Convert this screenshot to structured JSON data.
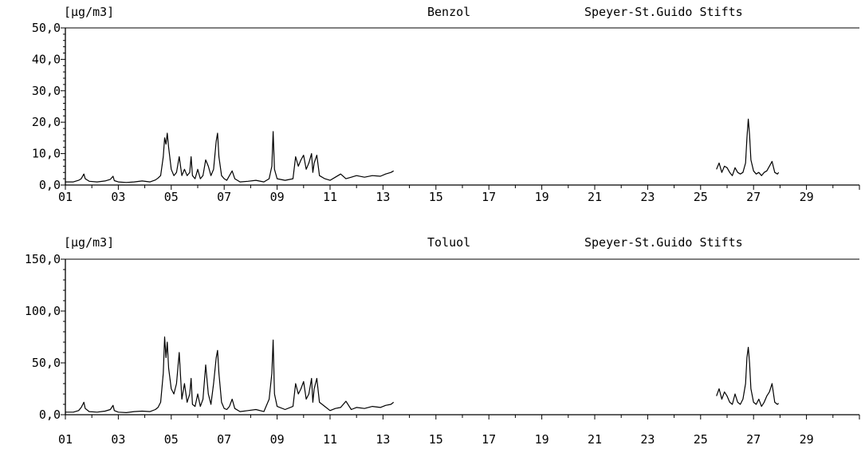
{
  "chart_data": [
    {
      "type": "line",
      "title": "Benzol",
      "station": "Speyer-St.Guido Stifts",
      "unit": "[µg/m3]",
      "xlim": [
        1,
        31
      ],
      "ylim": [
        0,
        50
      ],
      "yticks": [
        "0,0",
        "10,0",
        "20,0",
        "30,0",
        "40,0",
        "50,0"
      ],
      "xticks": [
        "01",
        "03",
        "05",
        "07",
        "09",
        "11",
        "13",
        "15",
        "17",
        "19",
        "21",
        "23",
        "25",
        "27",
        "29"
      ],
      "grid": false,
      "series": [
        {
          "segments": [
            [
              [
                1.0,
                1.0
              ],
              [
                1.3,
                1.0
              ],
              [
                1.5,
                1.5
              ],
              [
                1.6,
                2.0
              ],
              [
                1.7,
                3.5
              ],
              [
                1.75,
                2.0
              ],
              [
                1.9,
                1.2
              ],
              [
                2.2,
                1.0
              ],
              [
                2.5,
                1.3
              ],
              [
                2.7,
                1.8
              ],
              [
                2.8,
                2.8
              ],
              [
                2.85,
                1.4
              ],
              [
                3.0,
                1.0
              ],
              [
                3.3,
                0.8
              ],
              [
                3.6,
                1.0
              ],
              [
                3.9,
                1.3
              ],
              [
                4.2,
                1.0
              ],
              [
                4.4,
                1.6
              ],
              [
                4.5,
                2.2
              ],
              [
                4.6,
                3.0
              ],
              [
                4.7,
                9.0
              ],
              [
                4.75,
                15.0
              ],
              [
                4.8,
                13.0
              ],
              [
                4.85,
                16.5
              ],
              [
                4.9,
                12.0
              ],
              [
                5.0,
                5.0
              ],
              [
                5.1,
                3.0
              ],
              [
                5.2,
                4.0
              ],
              [
                5.3,
                9.0
              ],
              [
                5.4,
                3.0
              ],
              [
                5.5,
                5.0
              ],
              [
                5.6,
                3.0
              ],
              [
                5.7,
                4.0
              ],
              [
                5.75,
                9.0
              ],
              [
                5.8,
                3.0
              ],
              [
                5.9,
                2.0
              ],
              [
                6.0,
                5.0
              ],
              [
                6.1,
                2.0
              ],
              [
                6.2,
                3.0
              ],
              [
                6.3,
                8.0
              ],
              [
                6.4,
                6.0
              ],
              [
                6.5,
                3.0
              ],
              [
                6.6,
                5.0
              ],
              [
                6.7,
                14.0
              ],
              [
                6.75,
                16.5
              ],
              [
                6.8,
                9.0
              ],
              [
                6.9,
                3.0
              ],
              [
                7.0,
                2.0
              ],
              [
                7.1,
                1.5
              ],
              [
                7.2,
                3.0
              ],
              [
                7.3,
                4.5
              ],
              [
                7.4,
                2.0
              ],
              [
                7.6,
                1.0
              ],
              [
                7.9,
                1.2
              ],
              [
                8.2,
                1.5
              ],
              [
                8.5,
                1.0
              ],
              [
                8.7,
                2.0
              ],
              [
                8.8,
                6.0
              ],
              [
                8.85,
                17.0
              ],
              [
                8.9,
                5.0
              ],
              [
                9.0,
                2.0
              ],
              [
                9.3,
                1.5
              ],
              [
                9.6,
                2.0
              ],
              [
                9.7,
                9.0
              ],
              [
                9.8,
                6.0
              ],
              [
                9.9,
                8.0
              ],
              [
                10.0,
                9.5
              ],
              [
                10.1,
                5.0
              ],
              [
                10.2,
                7.0
              ],
              [
                10.3,
                10.0
              ],
              [
                10.35,
                4.0
              ],
              [
                10.4,
                7.0
              ],
              [
                10.5,
                9.5
              ],
              [
                10.6,
                3.0
              ],
              [
                10.8,
                2.0
              ],
              [
                11.0,
                1.5
              ],
              [
                11.2,
                2.5
              ],
              [
                11.4,
                3.5
              ],
              [
                11.6,
                2.0
              ],
              [
                11.8,
                2.5
              ],
              [
                12.0,
                3.0
              ],
              [
                12.3,
                2.5
              ],
              [
                12.6,
                3.0
              ],
              [
                12.9,
                2.8
              ],
              [
                13.1,
                3.5
              ],
              [
                13.3,
                4.0
              ],
              [
                13.4,
                4.5
              ]
            ],
            [
              [
                25.6,
                5.0
              ],
              [
                25.7,
                7.0
              ],
              [
                25.8,
                4.0
              ],
              [
                25.9,
                6.0
              ],
              [
                26.0,
                5.5
              ],
              [
                26.1,
                4.0
              ],
              [
                26.2,
                3.0
              ],
              [
                26.3,
                5.5
              ],
              [
                26.4,
                4.0
              ],
              [
                26.5,
                3.5
              ],
              [
                26.6,
                4.0
              ],
              [
                26.7,
                7.0
              ],
              [
                26.75,
                15.0
              ],
              [
                26.8,
                21.0
              ],
              [
                26.85,
                16.0
              ],
              [
                26.9,
                8.0
              ],
              [
                27.0,
                4.5
              ],
              [
                27.1,
                3.5
              ],
              [
                27.2,
                4.0
              ],
              [
                27.3,
                3.0
              ],
              [
                27.4,
                4.0
              ],
              [
                27.5,
                4.5
              ],
              [
                27.6,
                6.0
              ],
              [
                27.7,
                7.5
              ],
              [
                27.8,
                4.0
              ],
              [
                27.9,
                3.5
              ],
              [
                27.95,
                4.0
              ]
            ]
          ]
        }
      ]
    },
    {
      "type": "line",
      "title": "Toluol",
      "station": "Speyer-St.Guido Stifts",
      "unit": "[µg/m3]",
      "xlim": [
        1,
        31
      ],
      "ylim": [
        0,
        150
      ],
      "yticks": [
        "0,0",
        "50,0",
        "100,0",
        "150,0"
      ],
      "xticks": [
        "01",
        "03",
        "05",
        "07",
        "09",
        "11",
        "13",
        "15",
        "17",
        "19",
        "21",
        "23",
        "25",
        "27",
        "29"
      ],
      "grid": false,
      "series": [
        {
          "segments": [
            [
              [
                1.0,
                2.5
              ],
              [
                1.3,
                2.5
              ],
              [
                1.5,
                4.0
              ],
              [
                1.6,
                7.0
              ],
              [
                1.7,
                12.0
              ],
              [
                1.75,
                6.0
              ],
              [
                1.9,
                3.0
              ],
              [
                2.2,
                2.5
              ],
              [
                2.5,
                3.5
              ],
              [
                2.7,
                5.0
              ],
              [
                2.8,
                9.0
              ],
              [
                2.85,
                4.0
              ],
              [
                3.0,
                2.5
              ],
              [
                3.3,
                2.0
              ],
              [
                3.6,
                3.0
              ],
              [
                3.9,
                3.5
              ],
              [
                4.2,
                3.0
              ],
              [
                4.4,
                5.0
              ],
              [
                4.5,
                7.0
              ],
              [
                4.6,
                12.0
              ],
              [
                4.7,
                40.0
              ],
              [
                4.75,
                75.0
              ],
              [
                4.8,
                55.0
              ],
              [
                4.85,
                70.0
              ],
              [
                4.9,
                45.0
              ],
              [
                5.0,
                25.0
              ],
              [
                5.1,
                20.0
              ],
              [
                5.2,
                30.0
              ],
              [
                5.3,
                60.0
              ],
              [
                5.4,
                15.0
              ],
              [
                5.5,
                30.0
              ],
              [
                5.6,
                12.0
              ],
              [
                5.7,
                20.0
              ],
              [
                5.75,
                35.0
              ],
              [
                5.8,
                10.0
              ],
              [
                5.9,
                8.0
              ],
              [
                6.0,
                20.0
              ],
              [
                6.1,
                8.0
              ],
              [
                6.2,
                15.0
              ],
              [
                6.3,
                48.0
              ],
              [
                6.4,
                20.0
              ],
              [
                6.5,
                10.0
              ],
              [
                6.6,
                30.0
              ],
              [
                6.7,
                55.0
              ],
              [
                6.75,
                62.0
              ],
              [
                6.8,
                40.0
              ],
              [
                6.9,
                12.0
              ],
              [
                7.0,
                6.0
              ],
              [
                7.1,
                5.0
              ],
              [
                7.2,
                8.0
              ],
              [
                7.3,
                15.0
              ],
              [
                7.4,
                6.0
              ],
              [
                7.6,
                3.0
              ],
              [
                7.9,
                4.0
              ],
              [
                8.2,
                5.0
              ],
              [
                8.5,
                3.0
              ],
              [
                8.7,
                15.0
              ],
              [
                8.8,
                40.0
              ],
              [
                8.85,
                72.0
              ],
              [
                8.9,
                20.0
              ],
              [
                9.0,
                8.0
              ],
              [
                9.3,
                5.0
              ],
              [
                9.6,
                8.0
              ],
              [
                9.7,
                30.0
              ],
              [
                9.8,
                20.0
              ],
              [
                9.9,
                25.0
              ],
              [
                10.0,
                32.0
              ],
              [
                10.1,
                15.0
              ],
              [
                10.2,
                20.0
              ],
              [
                10.3,
                35.0
              ],
              [
                10.35,
                12.0
              ],
              [
                10.4,
                25.0
              ],
              [
                10.5,
                35.0
              ],
              [
                10.6,
                12.0
              ],
              [
                10.8,
                8.0
              ],
              [
                11.0,
                4.0
              ],
              [
                11.2,
                6.0
              ],
              [
                11.4,
                7.0
              ],
              [
                11.6,
                13.0
              ],
              [
                11.8,
                5.0
              ],
              [
                12.0,
                7.0
              ],
              [
                12.3,
                6.0
              ],
              [
                12.6,
                8.0
              ],
              [
                12.9,
                7.0
              ],
              [
                13.1,
                9.0
              ],
              [
                13.3,
                10.0
              ],
              [
                13.4,
                12.0
              ]
            ],
            [
              [
                25.6,
                18.0
              ],
              [
                25.7,
                25.0
              ],
              [
                25.8,
                15.0
              ],
              [
                25.9,
                22.0
              ],
              [
                26.0,
                18.0
              ],
              [
                26.1,
                12.0
              ],
              [
                26.2,
                10.0
              ],
              [
                26.3,
                20.0
              ],
              [
                26.4,
                12.0
              ],
              [
                26.5,
                10.0
              ],
              [
                26.6,
                15.0
              ],
              [
                26.7,
                30.0
              ],
              [
                26.75,
                55.0
              ],
              [
                26.8,
                65.0
              ],
              [
                26.85,
                50.0
              ],
              [
                26.9,
                25.0
              ],
              [
                27.0,
                12.0
              ],
              [
                27.1,
                10.0
              ],
              [
                27.2,
                15.0
              ],
              [
                27.3,
                8.0
              ],
              [
                27.4,
                12.0
              ],
              [
                27.5,
                18.0
              ],
              [
                27.6,
                22.0
              ],
              [
                27.7,
                30.0
              ],
              [
                27.8,
                12.0
              ],
              [
                27.9,
                10.0
              ],
              [
                27.95,
                11.0
              ]
            ]
          ]
        }
      ]
    }
  ]
}
